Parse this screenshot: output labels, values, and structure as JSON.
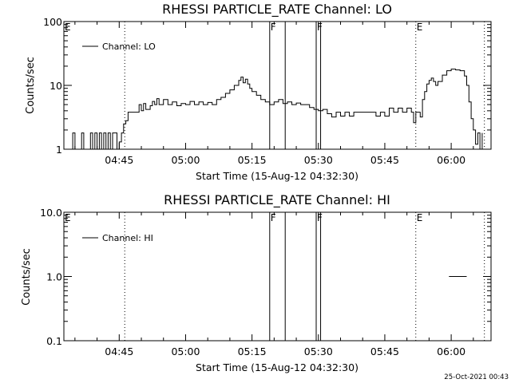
{
  "chart_data": [
    {
      "type": "line",
      "title": "RHESSI PARTICLE_RATE Channel: LO",
      "xlabel": "Start Time (15-Aug-12 04:32:30)",
      "ylabel": "Counts/sec",
      "yscale": "log",
      "ylim": [
        1,
        100
      ],
      "xlim": [
        "04:32:30",
        "06:09:00"
      ],
      "xticks": [
        "04:45",
        "05:00",
        "05:15",
        "05:30",
        "05:45",
        "06:00"
      ],
      "yticks": [
        "1",
        "10",
        "100"
      ],
      "legend": "top-left",
      "grid": false,
      "series": [
        {
          "name": "Channel: LO",
          "points": [
            [
              "04:34:00",
              1.0
            ],
            [
              "04:34:30",
              1.8
            ],
            [
              "04:35:00",
              1.0
            ],
            [
              "04:36:00",
              1.0
            ],
            [
              "04:36:30",
              1.8
            ],
            [
              "04:37:00",
              1.0
            ],
            [
              "04:38:00",
              1.0
            ],
            [
              "04:38:30",
              1.8
            ],
            [
              "04:39:00",
              1.0
            ],
            [
              "04:39:30",
              1.8
            ],
            [
              "04:40:00",
              1.0
            ],
            [
              "04:40:30",
              1.8
            ],
            [
              "04:41:00",
              1.0
            ],
            [
              "04:41:30",
              1.8
            ],
            [
              "04:42:00",
              1.0
            ],
            [
              "04:42:30",
              1.8
            ],
            [
              "04:43:00",
              1.0
            ],
            [
              "04:43:30",
              1.8
            ],
            [
              "04:44:00",
              1.8
            ],
            [
              "04:44:30",
              1.0
            ],
            [
              "04:45:00",
              1.3
            ],
            [
              "04:45:30",
              1.8
            ],
            [
              "04:46:00",
              2.5
            ],
            [
              "04:46:30",
              2.8
            ],
            [
              "04:47:00",
              3.8
            ],
            [
              "04:49:00",
              3.8
            ],
            [
              "04:49:30",
              5.0
            ],
            [
              "04:50:00",
              4.0
            ],
            [
              "04:50:30",
              5.2
            ],
            [
              "04:51:00",
              4.2
            ],
            [
              "04:52:00",
              4.8
            ],
            [
              "04:52:30",
              5.6
            ],
            [
              "04:53:00",
              5.0
            ],
            [
              "04:53:30",
              6.2
            ],
            [
              "04:54:00",
              5.0
            ],
            [
              "04:55:00",
              6.0
            ],
            [
              "04:56:00",
              5.0
            ],
            [
              "04:57:00",
              5.5
            ],
            [
              "04:58:00",
              4.8
            ],
            [
              "04:59:00",
              5.2
            ],
            [
              "05:00:00",
              5.0
            ],
            [
              "05:01:00",
              5.6
            ],
            [
              "05:02:00",
              5.0
            ],
            [
              "05:03:00",
              5.5
            ],
            [
              "05:04:00",
              5.0
            ],
            [
              "05:05:00",
              5.4
            ],
            [
              "05:06:00",
              5.0
            ],
            [
              "05:07:00",
              6.0
            ],
            [
              "05:08:00",
              6.5
            ],
            [
              "05:09:00",
              7.5
            ],
            [
              "05:10:00",
              8.5
            ],
            [
              "05:11:00",
              10.0
            ],
            [
              "05:12:00",
              12.0
            ],
            [
              "05:12:30",
              13.5
            ],
            [
              "05:13:00",
              11.0
            ],
            [
              "05:13:30",
              12.5
            ],
            [
              "05:14:00",
              10.5
            ],
            [
              "05:14:30",
              9.0
            ],
            [
              "05:15:00",
              8.0
            ],
            [
              "05:16:00",
              7.0
            ],
            [
              "05:17:00",
              6.0
            ],
            [
              "05:18:00",
              5.5
            ],
            [
              "05:19:00",
              5.0
            ],
            [
              "05:20:00",
              5.5
            ],
            [
              "05:21:00",
              6.0
            ],
            [
              "05:22:00",
              5.2
            ],
            [
              "05:23:00",
              5.5
            ],
            [
              "05:24:00",
              5.0
            ],
            [
              "05:25:00",
              5.3
            ],
            [
              "05:26:00",
              5.0
            ],
            [
              "05:27:00",
              5.0
            ],
            [
              "05:28:00",
              4.5
            ],
            [
              "05:29:00",
              4.2
            ],
            [
              "05:30:00",
              4.0
            ],
            [
              "05:31:00",
              4.2
            ],
            [
              "05:32:00",
              3.6
            ],
            [
              "05:33:00",
              3.2
            ],
            [
              "05:34:00",
              3.8
            ],
            [
              "05:35:00",
              3.3
            ],
            [
              "05:36:00",
              3.8
            ],
            [
              "05:37:00",
              3.3
            ],
            [
              "05:38:00",
              3.8
            ],
            [
              "05:39:00",
              3.8
            ],
            [
              "05:40:00",
              3.8
            ],
            [
              "05:41:00",
              3.8
            ],
            [
              "05:42:00",
              3.8
            ],
            [
              "05:43:00",
              3.3
            ],
            [
              "05:44:00",
              3.8
            ],
            [
              "05:45:00",
              3.3
            ],
            [
              "05:46:00",
              4.4
            ],
            [
              "05:47:00",
              3.8
            ],
            [
              "05:48:00",
              4.4
            ],
            [
              "05:49:00",
              3.8
            ],
            [
              "05:50:00",
              4.4
            ],
            [
              "05:51:00",
              3.8
            ],
            [
              "05:51:30",
              2.6
            ],
            [
              "05:52:00",
              3.8
            ],
            [
              "05:53:00",
              3.2
            ],
            [
              "05:53:30",
              6.0
            ],
            [
              "05:54:00",
              8.0
            ],
            [
              "05:54:30",
              10.5
            ],
            [
              "05:55:00",
              12.0
            ],
            [
              "05:55:30",
              13.0
            ],
            [
              "05:56:00",
              11.5
            ],
            [
              "05:56:30",
              10.0
            ],
            [
              "05:57:00",
              11.5
            ],
            [
              "05:58:00",
              14.5
            ],
            [
              "05:59:00",
              17.0
            ],
            [
              "06:00:00",
              18.0
            ],
            [
              "06:01:00",
              17.5
            ],
            [
              "06:02:00",
              17.0
            ],
            [
              "06:03:00",
              14.0
            ],
            [
              "06:03:30",
              10.0
            ],
            [
              "06:04:00",
              5.5
            ],
            [
              "06:04:30",
              3.0
            ],
            [
              "06:05:00",
              2.0
            ],
            [
              "06:05:30",
              1.2
            ],
            [
              "06:06:00",
              1.8
            ],
            [
              "06:06:30",
              1.0
            ],
            [
              "06:07:00",
              1.8
            ]
          ]
        }
      ],
      "markers": [
        {
          "label": "E",
          "time": "04:32:30",
          "style": "dotted"
        },
        {
          "label": "",
          "time": "04:46:15",
          "style": "dotted"
        },
        {
          "label": "F",
          "time": "05:19:00",
          "style": "solid"
        },
        {
          "label": "",
          "time": "05:22:30",
          "style": "solid"
        },
        {
          "label": "F",
          "time": "05:29:30",
          "style": "solid"
        },
        {
          "label": "",
          "time": "05:30:30",
          "style": "solid"
        },
        {
          "label": "E",
          "time": "05:52:00",
          "style": "dotted"
        },
        {
          "label": "",
          "time": "06:07:30",
          "style": "dotted"
        }
      ]
    },
    {
      "type": "line",
      "title": "RHESSI PARTICLE_RATE Channel: HI",
      "xlabel": "Start Time (15-Aug-12 04:32:30)",
      "ylabel": "Counts/sec",
      "yscale": "log",
      "ylim": [
        0.1,
        10
      ],
      "xlim": [
        "04:32:30",
        "06:09:00"
      ],
      "xticks": [
        "04:45",
        "05:00",
        "05:15",
        "05:30",
        "05:45",
        "06:00"
      ],
      "yticks": [
        "0.1",
        "1.0",
        "10.0"
      ],
      "legend": "top-left",
      "grid": false,
      "series": [
        {
          "name": "Channel: HI",
          "points": [
            [
              "05:59:30",
              1.0
            ],
            [
              "06:03:30",
              1.0
            ]
          ]
        }
      ],
      "markers": [
        {
          "label": "E",
          "time": "04:32:30",
          "style": "dotted"
        },
        {
          "label": "",
          "time": "04:46:15",
          "style": "dotted"
        },
        {
          "label": "F",
          "time": "05:19:00",
          "style": "solid"
        },
        {
          "label": "",
          "time": "05:22:30",
          "style": "solid"
        },
        {
          "label": "F",
          "time": "05:29:30",
          "style": "solid"
        },
        {
          "label": "",
          "time": "05:30:30",
          "style": "solid"
        },
        {
          "label": "E",
          "time": "05:52:00",
          "style": "dotted"
        },
        {
          "label": "",
          "time": "06:07:30",
          "style": "dotted"
        }
      ]
    }
  ],
  "footer": {
    "timestamp": "25-Oct-2021 00:43"
  }
}
